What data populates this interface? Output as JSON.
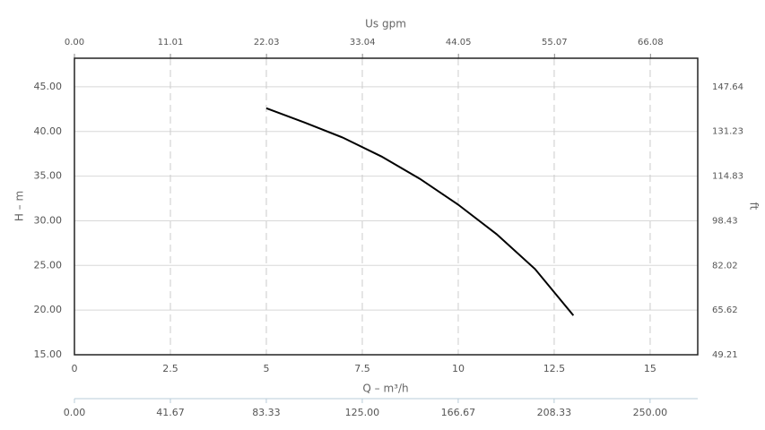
{
  "chart_data": {
    "type": "line",
    "x_label": "Q – m³/h",
    "y_label": "H – m",
    "x2_label": "Us gpm",
    "y2_label": "ft",
    "x": [
      5,
      6,
      7,
      8,
      9,
      10,
      11,
      12,
      13
    ],
    "series": [
      {
        "color": "#000000",
        "values": [
          42.6,
          41.0,
          39.3,
          37.2,
          34.7,
          31.8,
          28.5,
          24.6,
          19.4
        ]
      }
    ],
    "xlim": [
      0,
      16.24
    ],
    "xticks": [
      0,
      2.5,
      5,
      7.5,
      10,
      12.5,
      15
    ],
    "ylim": [
      15,
      48.2
    ],
    "yticks": [
      {
        "value": 15,
        "label": "15.00"
      },
      {
        "value": 20,
        "label": "20.00"
      },
      {
        "value": 25,
        "label": "25.00"
      },
      {
        "value": 30,
        "label": "30.00"
      },
      {
        "value": 35,
        "label": "35.00"
      },
      {
        "value": 40,
        "label": "40.00"
      },
      {
        "value": 45,
        "label": "45.00"
      }
    ],
    "x2lim": [
      0,
      71.5
    ],
    "x2ticks": [
      {
        "value": 0,
        "label": "0.00"
      },
      11.01,
      22.03,
      33.04,
      44.05,
      55.07,
      66.08
    ],
    "y2lim": [
      49.21,
      158.1
    ],
    "y2ticks": [
      49.21,
      65.62,
      82.02,
      98.43,
      114.83,
      131.23,
      147.64
    ],
    "x3lim": [
      0,
      270.7
    ],
    "x3ticks": [
      {
        "value": 0,
        "label": "0.00"
      },
      41.67,
      83.33,
      {
        "value": 125,
        "label": "125.00"
      },
      166.67,
      208.33,
      {
        "value": 250,
        "label": "250.00"
      }
    ],
    "grid": true
  }
}
